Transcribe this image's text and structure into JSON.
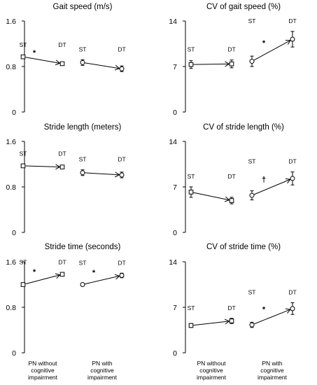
{
  "chart_data": [
    {
      "type": "line",
      "title": "Gait speed (m/s)",
      "ylim": [
        0,
        1.6
      ],
      "yticks": [
        "0",
        "0.8",
        "1.6"
      ],
      "categories": [
        "PN without cognitive impairment",
        "PN with cognitive impairment"
      ],
      "condition_labels": [
        "ST",
        "DT"
      ],
      "groups": [
        {
          "st": 0.97,
          "dt": 0.85,
          "st_err": 0.03,
          "dt_err": 0.03,
          "marker": "square",
          "significance": "*"
        },
        {
          "st": 0.87,
          "dt": 0.76,
          "st_err": 0.05,
          "dt_err": 0.05,
          "marker": "circle",
          "significance": ""
        }
      ]
    },
    {
      "type": "line",
      "title": "CV of gait speed (%)",
      "ylim": [
        0,
        14
      ],
      "yticks": [
        "0",
        "7",
        "14"
      ],
      "categories": [
        "PN without cognitive impairment",
        "PN with cognitive impairment"
      ],
      "condition_labels": [
        "ST",
        "DT"
      ],
      "groups": [
        {
          "st": 7.3,
          "dt": 7.4,
          "st_err": 0.6,
          "dt_err": 0.6,
          "marker": "square",
          "significance": ""
        },
        {
          "st": 7.8,
          "dt": 11.2,
          "st_err": 0.8,
          "dt_err": 1.2,
          "marker": "circle",
          "significance": "*"
        }
      ]
    },
    {
      "type": "line",
      "title": "Stride length (meters)",
      "ylim": [
        0,
        1.6
      ],
      "yticks": [
        "0",
        "0.8",
        "1.6"
      ],
      "categories": [
        "PN without cognitive impairment",
        "PN with cognitive impairment"
      ],
      "condition_labels": [
        "ST",
        "DT"
      ],
      "groups": [
        {
          "st": 1.17,
          "dt": 1.15,
          "st_err": 0.03,
          "dt_err": 0.03,
          "marker": "square",
          "significance": ""
        },
        {
          "st": 1.05,
          "dt": 1.01,
          "st_err": 0.05,
          "dt_err": 0.05,
          "marker": "circle",
          "significance": ""
        }
      ]
    },
    {
      "type": "line",
      "title": "CV of stride length (%)",
      "ylim": [
        0,
        14
      ],
      "yticks": [
        "0",
        "7",
        "14"
      ],
      "categories": [
        "PN without cognitive impairment",
        "PN with cognitive impairment"
      ],
      "condition_labels": [
        "ST",
        "DT"
      ],
      "groups": [
        {
          "st": 6.2,
          "dt": 4.9,
          "st_err": 0.8,
          "dt_err": 0.5,
          "marker": "square",
          "significance": ""
        },
        {
          "st": 5.7,
          "dt": 8.3,
          "st_err": 0.7,
          "dt_err": 1.0,
          "marker": "circle",
          "significance": "†"
        }
      ]
    },
    {
      "type": "line",
      "title": "Stride time (seconds)",
      "ylim": [
        0,
        1.6
      ],
      "yticks": [
        "0",
        "0.8",
        "1.6"
      ],
      "categories": [
        "PN without cognitive impairment",
        "PN with cognitive impairment"
      ],
      "condition_labels": [
        "ST",
        "DT"
      ],
      "groups": [
        {
          "st": 1.2,
          "dt": 1.38,
          "st_err": 0.02,
          "dt_err": 0.03,
          "marker": "square",
          "significance": "*"
        },
        {
          "st": 1.2,
          "dt": 1.36,
          "st_err": 0.02,
          "dt_err": 0.04,
          "marker": "circle",
          "significance": "*"
        }
      ]
    },
    {
      "type": "line",
      "title": "CV of stride time (%)",
      "ylim": [
        0,
        14
      ],
      "yticks": [
        "0",
        "7",
        "14"
      ],
      "categories": [
        "PN without cognitive impairment",
        "PN with cognitive impairment"
      ],
      "condition_labels": [
        "ST",
        "DT"
      ],
      "groups": [
        {
          "st": 4.2,
          "dt": 4.9,
          "st_err": 0.3,
          "dt_err": 0.4,
          "marker": "square",
          "significance": ""
        },
        {
          "st": 4.3,
          "dt": 6.8,
          "st_err": 0.4,
          "dt_err": 0.9,
          "marker": "circle",
          "significance": "*"
        }
      ]
    }
  ],
  "category_labels": [
    [
      "PN without",
      "cognitive",
      "impairment"
    ],
    [
      "PN with",
      "cognitive",
      "impairment"
    ]
  ]
}
